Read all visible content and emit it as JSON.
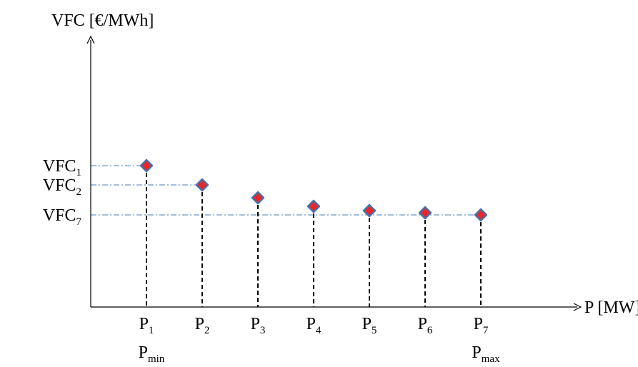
{
  "chart_data": {
    "type": "scatter",
    "title": "",
    "ylabel": "VFC [€/MWh]",
    "xlabel": "P [MW]",
    "x_ticks": [
      {
        "base": "P",
        "sub": "1",
        "line2_base": "P",
        "line2_sub": "min"
      },
      {
        "base": "P",
        "sub": "2"
      },
      {
        "base": "P",
        "sub": "3"
      },
      {
        "base": "P",
        "sub": "4"
      },
      {
        "base": "P",
        "sub": "5"
      },
      {
        "base": "P",
        "sub": "6"
      },
      {
        "base": "P",
        "sub": "7",
        "line2_base": "P",
        "line2_sub": "max"
      }
    ],
    "y_ticks": [
      {
        "base": "VFC",
        "sub": "1",
        "point_index": 0
      },
      {
        "base": "VFC",
        "sub": "2",
        "point_index": 1
      },
      {
        "base": "VFC",
        "sub": "7",
        "point_index": 6
      }
    ],
    "x_values": [
      1,
      2,
      3,
      4,
      5,
      6,
      7
    ],
    "y_values": [
      6.6,
      5.7,
      5.1,
      4.7,
      4.5,
      4.4,
      4.3
    ],
    "xlim": [
      0,
      7.6
    ],
    "ylim": [
      0,
      9.2
    ],
    "marker_color": "#E8272A",
    "marker_edge_color": "#4A6FA5",
    "guide_color": "#4A7EBB",
    "drop_line_color": "#000000"
  }
}
